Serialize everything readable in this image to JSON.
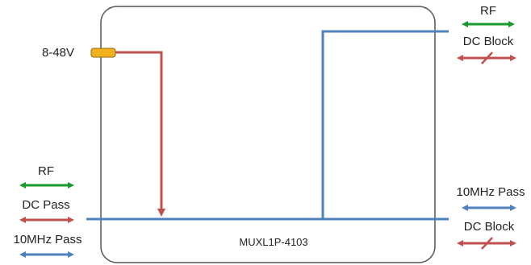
{
  "colors": {
    "rf": "#1a9a2e",
    "dc": "#c0504d",
    "tenmhz": "#4f81bd",
    "power": "#f2b01e",
    "box": "#555555"
  },
  "device": {
    "model": "MUXL1P-4103"
  },
  "power_input": {
    "voltage": "8-48V"
  },
  "ports": {
    "top_right": {
      "rf_label": "RF",
      "dc_label": "DC Block"
    },
    "bottom_left": {
      "rf_label": "RF",
      "dc_label": "DC Pass",
      "tenmhz_label": "10MHz Pass"
    },
    "bottom_right": {
      "tenmhz_label": "10MHz Pass",
      "dc_label": "DC Block"
    }
  }
}
